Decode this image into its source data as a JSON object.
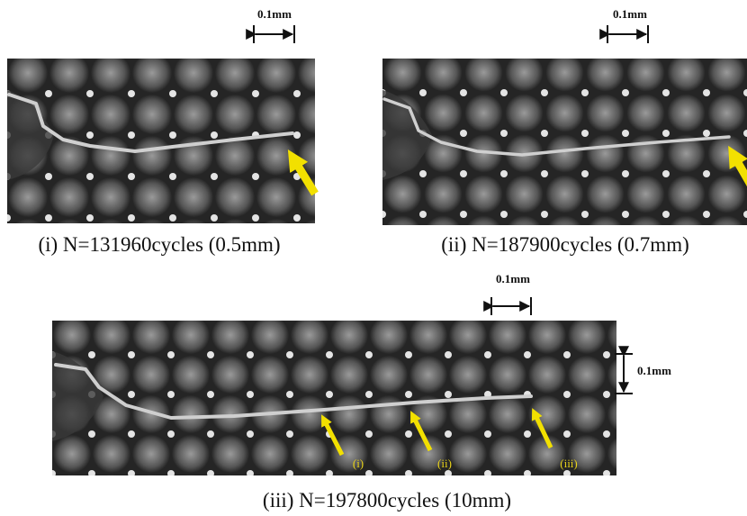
{
  "panels": [
    {
      "caption": "(i) N=131960cycles (0.5mm)",
      "scale_label": "0.1mm"
    },
    {
      "caption": "(ii) N=187900cycles (0.7mm)",
      "scale_label": "0.1mm"
    },
    {
      "caption": "(iii) N=197800cycles (10mm)",
      "scale_label": "0.1mm",
      "vertical_scale_label": "0.1mm",
      "arrow_labels": [
        "(i)",
        "(ii)",
        "(iii)"
      ]
    }
  ]
}
